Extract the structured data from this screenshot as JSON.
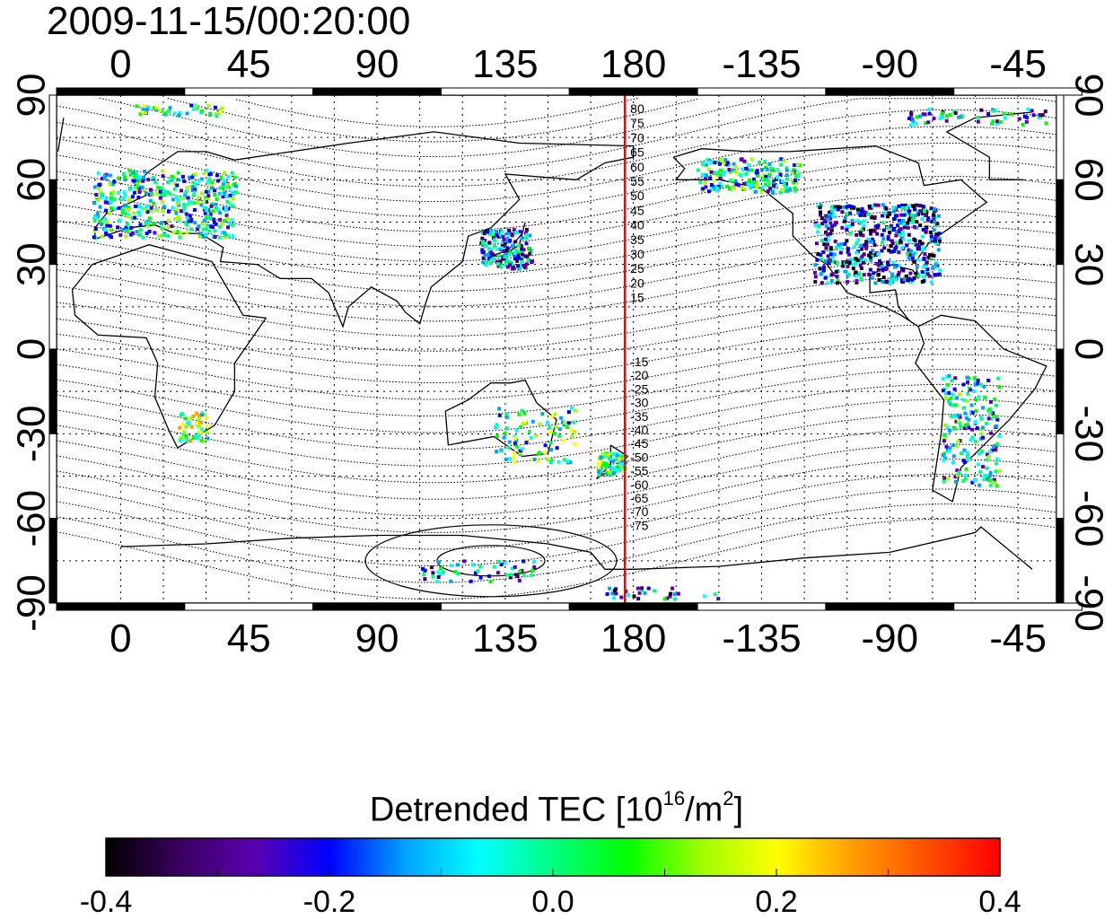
{
  "title": "2009-11-15/00:20:00",
  "map": {
    "top_axis_labels": [
      "0",
      "45",
      "90",
      "135",
      "180",
      "-135",
      "-90",
      "-45"
    ],
    "bottom_axis_labels": [
      "0",
      "45",
      "90",
      "135",
      "180",
      "-135",
      "-90",
      "-45"
    ],
    "left_axis_labels": [
      "90",
      "60",
      "30",
      "0",
      "-30",
      "-60",
      "-90"
    ],
    "right_axis_labels": [
      "90",
      "60",
      "30",
      "0",
      "-30",
      "-60",
      "-90"
    ],
    "contour_labels_north": [
      "80",
      "75",
      "70",
      "65",
      "60",
      "55",
      "50",
      "45",
      "40",
      "35",
      "30",
      "25",
      "20",
      "15"
    ],
    "contour_labels_south": [
      "-15",
      "-20",
      "-25",
      "-30",
      "-35",
      "-40",
      "-45",
      "-50",
      "-55",
      "-60",
      "-65",
      "-70",
      "-75"
    ],
    "meridian_marker_color": "#ff0000",
    "meridian_marker_longitude": 177
  },
  "colorbar": {
    "title_main": "Detrended TEC  [10",
    "title_exp1": "16",
    "title_mid": "/m",
    "title_exp2": "2",
    "title_end": "]",
    "tick_labels": [
      "-0.4",
      "-0.2",
      "0.0",
      "0.2",
      "0.4"
    ],
    "colors": [
      "#000000",
      "#3a0060",
      "#5a00b0",
      "#0000ff",
      "#00a0ff",
      "#00ffff",
      "#00ff80",
      "#00ff00",
      "#a0ff00",
      "#ffff00",
      "#ffa000",
      "#ff5000",
      "#ff0000"
    ]
  }
}
